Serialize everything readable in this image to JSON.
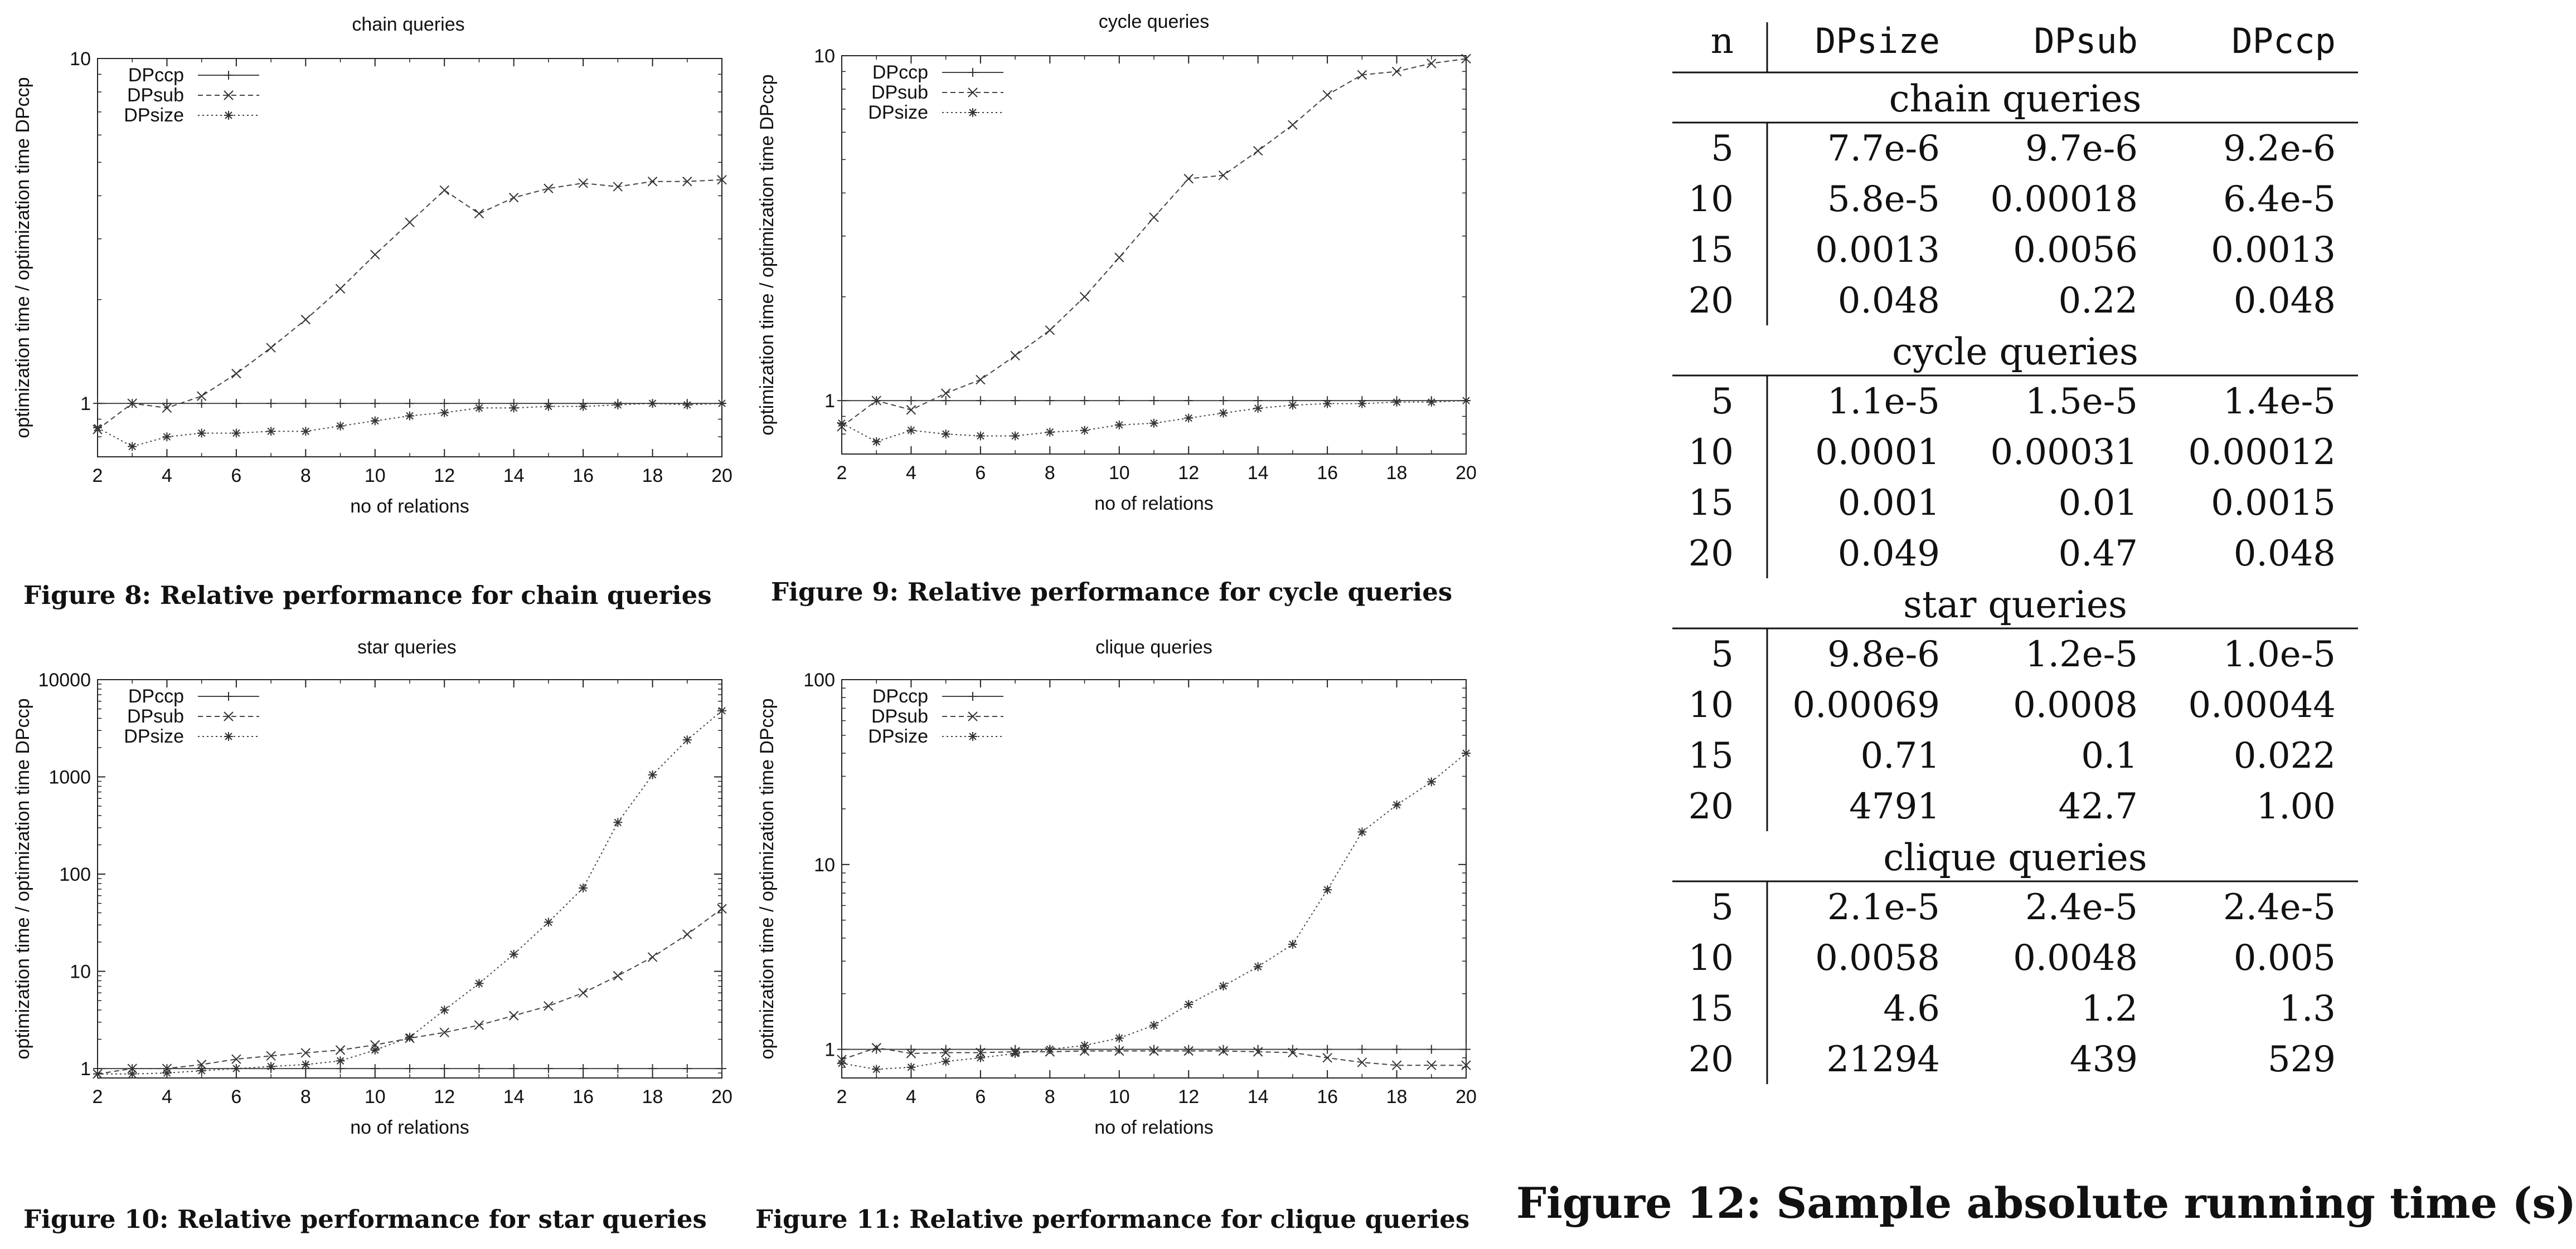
{
  "charts": {
    "chart_data": [
      {
        "type": "line",
        "title": "chain queries",
        "xlabel": "no of relations",
        "ylabel": "optimization time / optimization time DPccp",
        "yscale": "log",
        "ylim": [
          0.7,
          10
        ],
        "xlim": [
          2,
          20
        ],
        "x_ticks": [
          2,
          4,
          6,
          8,
          10,
          12,
          14,
          16,
          18,
          20
        ],
        "y_ticks": [
          1,
          10
        ],
        "y_tick_labels": [
          "1",
          "10"
        ],
        "legend_position": "top-left",
        "x": [
          2,
          3,
          4,
          5,
          6,
          7,
          8,
          9,
          10,
          11,
          12,
          13,
          14,
          15,
          16,
          17,
          18,
          19,
          20
        ],
        "series": [
          {
            "name": "DPccp",
            "marker": "+",
            "dash": "solid",
            "values": [
              1,
              1,
              1,
              1,
              1,
              1,
              1,
              1,
              1,
              1,
              1,
              1,
              1,
              1,
              1,
              1,
              1,
              1,
              1
            ]
          },
          {
            "name": "DPsub",
            "marker": "x",
            "dash": "dashed",
            "values": [
              0.84,
              1.0,
              0.97,
              1.05,
              1.22,
              1.45,
              1.75,
              2.15,
              2.7,
              3.35,
              4.15,
              3.55,
              3.95,
              4.2,
              4.35,
              4.25,
              4.4,
              4.4,
              4.45
            ]
          },
          {
            "name": "DPsize",
            "marker": "*",
            "dash": "dotted",
            "values": [
              0.85,
              0.75,
              0.8,
              0.82,
              0.82,
              0.83,
              0.83,
              0.86,
              0.89,
              0.92,
              0.94,
              0.97,
              0.97,
              0.98,
              0.98,
              0.99,
              1.0,
              0.99,
              1.0
            ]
          }
        ]
      },
      {
        "type": "line",
        "title": "cycle queries",
        "xlabel": "no of relations",
        "ylabel": "optimization time / optimization time DPccp",
        "yscale": "log",
        "ylim": [
          0.7,
          10
        ],
        "xlim": [
          2,
          20
        ],
        "x_ticks": [
          2,
          4,
          6,
          8,
          10,
          12,
          14,
          16,
          18,
          20
        ],
        "y_ticks": [
          1,
          10
        ],
        "y_tick_labels": [
          "1",
          "10"
        ],
        "legend_position": "top-left",
        "x": [
          2,
          3,
          4,
          5,
          6,
          7,
          8,
          9,
          10,
          11,
          12,
          13,
          14,
          15,
          16,
          17,
          18,
          19,
          20
        ],
        "series": [
          {
            "name": "DPccp",
            "marker": "+",
            "dash": "solid",
            "values": [
              1,
              1,
              1,
              1,
              1,
              1,
              1,
              1,
              1,
              1,
              1,
              1,
              1,
              1,
              1,
              1,
              1,
              1,
              1
            ]
          },
          {
            "name": "DPsub",
            "marker": "x",
            "dash": "dashed",
            "values": [
              0.84,
              1.0,
              0.94,
              1.05,
              1.15,
              1.35,
              1.6,
              2.0,
              2.6,
              3.4,
              4.4,
              4.5,
              5.3,
              6.3,
              7.7,
              8.8,
              9.0,
              9.5,
              9.8
            ]
          },
          {
            "name": "DPsize",
            "marker": "*",
            "dash": "dotted",
            "values": [
              0.86,
              0.76,
              0.82,
              0.8,
              0.79,
              0.79,
              0.81,
              0.82,
              0.85,
              0.86,
              0.89,
              0.92,
              0.95,
              0.97,
              0.98,
              0.98,
              0.99,
              0.99,
              1.0
            ]
          }
        ]
      },
      {
        "type": "line",
        "title": "star queries",
        "xlabel": "no of relations",
        "ylabel": "optimization time / optimization time DPccp",
        "yscale": "log",
        "ylim": [
          0.8,
          10000
        ],
        "xlim": [
          2,
          20
        ],
        "x_ticks": [
          2,
          4,
          6,
          8,
          10,
          12,
          14,
          16,
          18,
          20
        ],
        "y_ticks": [
          1,
          10,
          100,
          1000,
          10000
        ],
        "y_tick_labels": [
          "1",
          "10",
          "100",
          "1000",
          "10000"
        ],
        "legend_position": "top-left",
        "x": [
          2,
          3,
          4,
          5,
          6,
          7,
          8,
          9,
          10,
          11,
          12,
          13,
          14,
          15,
          16,
          17,
          18,
          19,
          20
        ],
        "series": [
          {
            "name": "DPccp",
            "marker": "+",
            "dash": "solid",
            "values": [
              1,
              1,
              1,
              1,
              1,
              1,
              1,
              1,
              1,
              1,
              1,
              1,
              1,
              1,
              1,
              1,
              1,
              1,
              1
            ]
          },
          {
            "name": "DPsub",
            "marker": "x",
            "dash": "dashed",
            "values": [
              0.88,
              1.0,
              1.0,
              1.1,
              1.25,
              1.35,
              1.45,
              1.55,
              1.75,
              2.05,
              2.35,
              2.8,
              3.5,
              4.4,
              6.0,
              9.0,
              14.0,
              24.0,
              44.0
            ]
          },
          {
            "name": "DPsize",
            "marker": "*",
            "dash": "dotted",
            "values": [
              0.88,
              0.88,
              0.9,
              0.95,
              1.0,
              1.05,
              1.1,
              1.2,
              1.55,
              2.1,
              4.0,
              7.5,
              15.0,
              32.0,
              72.0,
              340.0,
              1050.0,
              2400.0,
              4791.0
            ]
          }
        ]
      },
      {
        "type": "line",
        "title": "clique queries",
        "xlabel": "no of relations",
        "ylabel": "optimization time / optimization time DPccp",
        "yscale": "log",
        "ylim": [
          0.7,
          100
        ],
        "xlim": [
          2,
          20
        ],
        "x_ticks": [
          2,
          4,
          6,
          8,
          10,
          12,
          14,
          16,
          18,
          20
        ],
        "y_ticks": [
          1,
          10,
          100
        ],
        "y_tick_labels": [
          "1",
          "10",
          "100"
        ],
        "legend_position": "top-left",
        "x": [
          2,
          3,
          4,
          5,
          6,
          7,
          8,
          9,
          10,
          11,
          12,
          13,
          14,
          15,
          16,
          17,
          18,
          19,
          20
        ],
        "series": [
          {
            "name": "DPccp",
            "marker": "+",
            "dash": "solid",
            "values": [
              1,
              1,
              1,
              1,
              1,
              1,
              1,
              1,
              1,
              1,
              1,
              1,
              1,
              1,
              1,
              1,
              1,
              1,
              1
            ]
          },
          {
            "name": "DPsub",
            "marker": "x",
            "dash": "dashed",
            "values": [
              0.88,
              1.02,
              0.95,
              0.96,
              0.96,
              0.97,
              0.97,
              0.98,
              0.98,
              0.98,
              0.98,
              0.98,
              0.97,
              0.96,
              0.9,
              0.85,
              0.82,
              0.82,
              0.82
            ]
          },
          {
            "name": "DPsize",
            "marker": "*",
            "dash": "dotted",
            "values": [
              0.84,
              0.78,
              0.8,
              0.86,
              0.9,
              0.95,
              1.0,
              1.05,
              1.15,
              1.35,
              1.75,
              2.2,
              2.8,
              3.7,
              7.3,
              15.0,
              21.0,
              28.0,
              40.0
            ]
          }
        ]
      }
    ]
  },
  "captions": {
    "fig8": "Figure 8:  Relative performance for chain queries",
    "fig9": "Figure 9:  Relative performance for cycle queries",
    "fig10": "Figure 10:  Relative performance for star queries",
    "fig11": "Figure 11:  Relative performance for clique queries",
    "fig12": "Figure 12:  Sample absolute running time (s)"
  },
  "table": {
    "headers": [
      "n",
      "DPsize",
      "DPsub",
      "DPccp"
    ],
    "sections": [
      {
        "title": "chain queries",
        "rows": [
          [
            "5",
            "7.7e-6",
            "9.7e-6",
            "9.2e-6"
          ],
          [
            "10",
            "5.8e-5",
            "0.00018",
            "6.4e-5"
          ],
          [
            "15",
            "0.0013",
            "0.0056",
            "0.0013"
          ],
          [
            "20",
            "0.048",
            "0.22",
            "0.048"
          ]
        ]
      },
      {
        "title": "cycle queries",
        "rows": [
          [
            "5",
            "1.1e-5",
            "1.5e-5",
            "1.4e-5"
          ],
          [
            "10",
            "0.0001",
            "0.00031",
            "0.00012"
          ],
          [
            "15",
            "0.001",
            "0.01",
            "0.0015"
          ],
          [
            "20",
            "0.049",
            "0.47",
            "0.048"
          ]
        ]
      },
      {
        "title": "star queries",
        "rows": [
          [
            "5",
            "9.8e-6",
            "1.2e-5",
            "1.0e-5"
          ],
          [
            "10",
            "0.00069",
            "0.0008",
            "0.00044"
          ],
          [
            "15",
            "0.71",
            "0.1",
            "0.022"
          ],
          [
            "20",
            "4791",
            "42.7",
            "1.00"
          ]
        ]
      },
      {
        "title": "clique queries",
        "rows": [
          [
            "5",
            "2.1e-5",
            "2.4e-5",
            "2.4e-5"
          ],
          [
            "10",
            "0.0058",
            "0.0048",
            "0.005"
          ],
          [
            "15",
            "4.6",
            "1.2",
            "1.3"
          ],
          [
            "20",
            "21294",
            "439",
            "529"
          ]
        ]
      }
    ]
  }
}
